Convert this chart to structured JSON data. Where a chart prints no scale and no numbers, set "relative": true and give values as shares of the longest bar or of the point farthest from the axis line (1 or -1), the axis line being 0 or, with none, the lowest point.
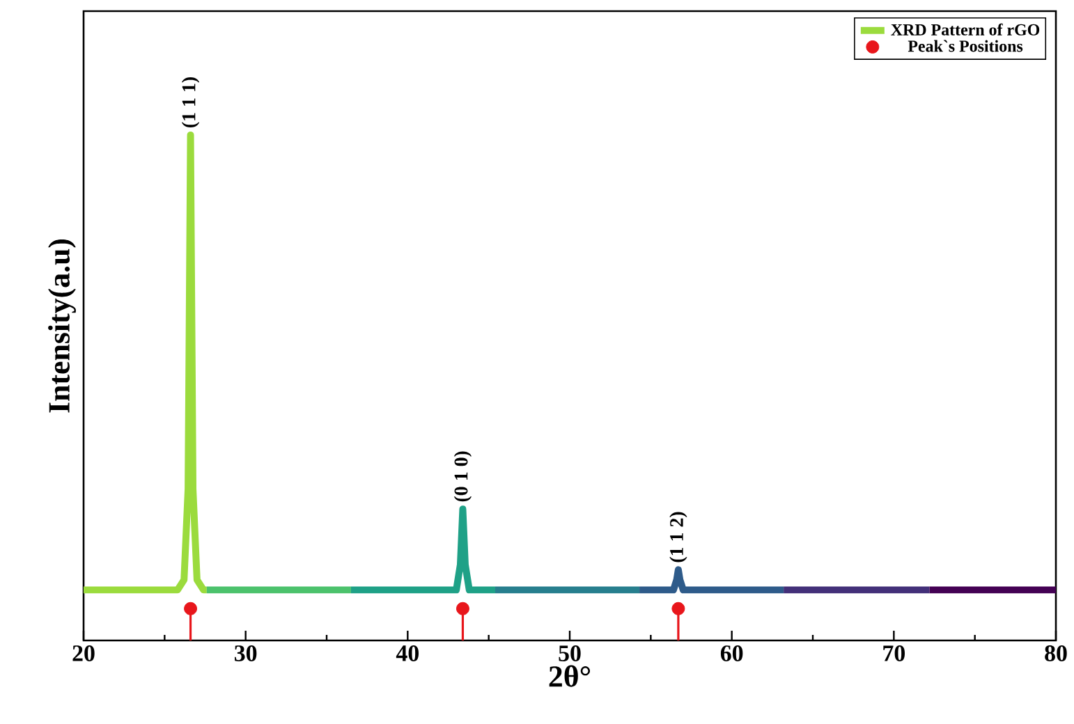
{
  "chart_data": {
    "type": "line",
    "relative": true,
    "xlabel": "2θ°",
    "ylabel": "Intensity(a.u)",
    "xlim": [
      20,
      80
    ],
    "xticks": [
      20,
      30,
      40,
      50,
      60,
      70,
      80
    ],
    "legend": "top right",
    "grid": false,
    "line_style": "solid",
    "series": [
      {
        "name": "XRD Pattern of rGO",
        "color": "#9bdb3d",
        "x": [
          20,
          25.8,
          26.2,
          26.45,
          26.6,
          26.75,
          27.0,
          27.4,
          27.6
        ],
        "values": [
          0.1,
          0.1,
          0.12,
          0.3,
          1,
          0.3,
          0.12,
          0.1,
          0.1
        ]
      },
      {
        "color": "#4cc26c",
        "x": [
          27.6,
          36.5
        ],
        "values": [
          0.1,
          0.1
        ]
      },
      {
        "color": "#1fa187",
        "x": [
          36.5,
          43.0,
          43.25,
          43.4,
          43.55,
          43.8,
          45.4
        ],
        "values": [
          0.1,
          0.1,
          0.15,
          0.26,
          0.15,
          0.1,
          0.1
        ]
      },
      {
        "color": "#277f8e",
        "x": [
          45.4,
          54.3
        ],
        "values": [
          0.1,
          0.1
        ]
      },
      {
        "color": "#2e5b8a",
        "x": [
          54.3,
          56.4,
          56.6,
          56.7,
          56.8,
          57.0,
          63.2
        ],
        "values": [
          0.1,
          0.1,
          0.12,
          0.14,
          0.12,
          0.1,
          0.1
        ]
      },
      {
        "color": "#433079",
        "x": [
          63.2,
          72.2
        ],
        "values": [
          0.1,
          0.1
        ]
      },
      {
        "color": "#440154",
        "x": [
          72.2,
          80
        ],
        "values": [
          0.1,
          0.1
        ]
      },
      {
        "name": "Peak`s Positions",
        "type": "lollipop",
        "color": "#e8161b",
        "marker": "circle",
        "x": [
          26.6,
          43.4,
          56.7
        ],
        "values": [
          0.063,
          0.063,
          0.063
        ]
      }
    ],
    "annotations": [
      {
        "text": "(1 1 1)",
        "x": 26.6,
        "y": 1
      },
      {
        "text": "(0 1 0)",
        "x": 43.4,
        "y": 0.26
      },
      {
        "text": "(1 1 2)",
        "x": 56.7,
        "y": 0.14
      }
    ]
  }
}
